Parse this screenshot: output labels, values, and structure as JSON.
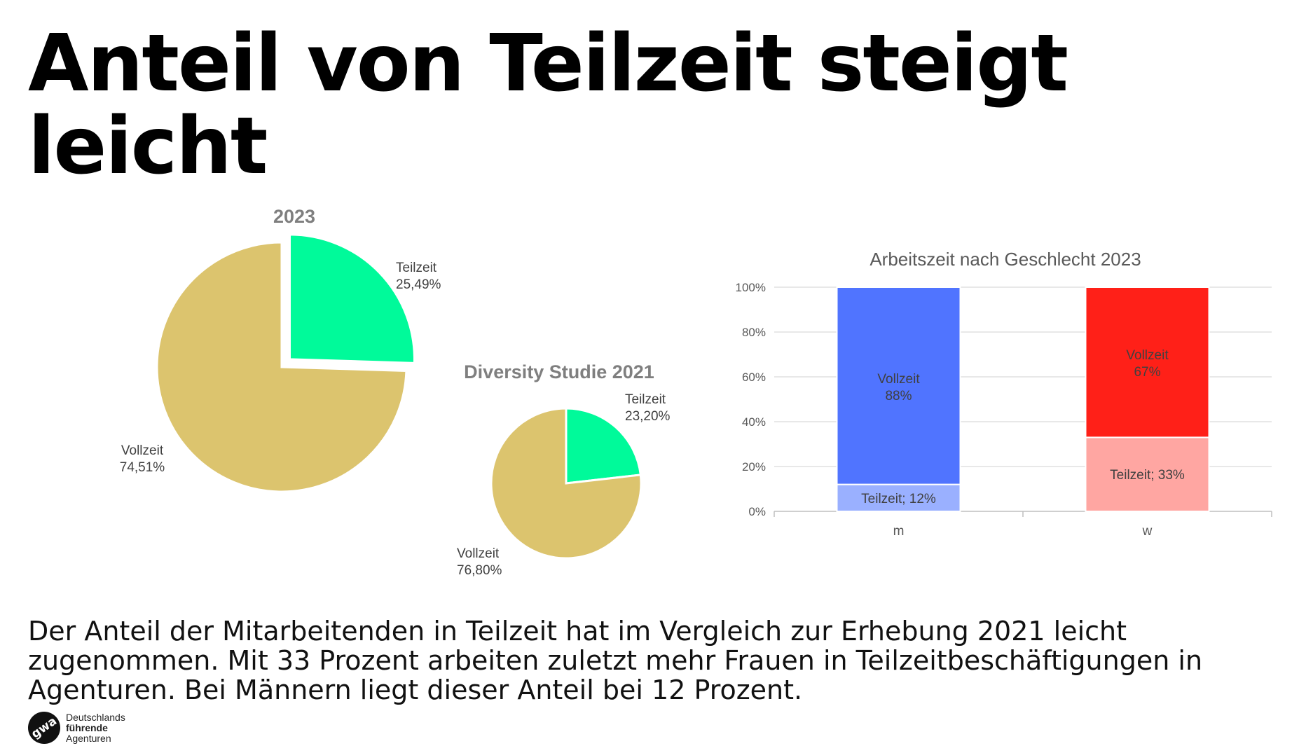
{
  "title": "Anteil von Teilzeit steigt leicht",
  "description": "Der Anteil der Mitarbeitenden in Teilzeit hat im Vergleich zur Erhebung 2021 leicht zugenommen. Mit 33 Prozent arbeiten zuletzt mehr Frauen in Teilzeitbeschäftigungen in Agenturen. Bei Männern liegt dieser Anteil bei 12 Prozent.",
  "logo": {
    "mark": "gwa",
    "line1": "Deutschlands",
    "line2": "führende",
    "line3": "Agenturen"
  },
  "colors": {
    "teilzeit_pie": "#00FA9A",
    "vollzeit_pie": "#DCC46E",
    "m_vollzeit": "#5074FF",
    "m_teilzeit": "#9AB0FF",
    "w_vollzeit": "#FF2018",
    "w_teilzeit": "#FFA6A2",
    "pie_title": "#7F7F7F",
    "bar_title": "#595959"
  },
  "chart_data": [
    {
      "type": "pie",
      "title": "2023",
      "slices": [
        {
          "label": "Teilzeit",
          "value": 25.49,
          "value_label": "25,49%",
          "exploded": true
        },
        {
          "label": "Vollzeit",
          "value": 74.51,
          "value_label": "74,51%"
        }
      ]
    },
    {
      "type": "pie",
      "title": "Diversity Studie 2021",
      "slices": [
        {
          "label": "Teilzeit",
          "value": 23.2,
          "value_label": "23,20%"
        },
        {
          "label": "Vollzeit",
          "value": 76.8,
          "value_label": "76,80%"
        }
      ]
    },
    {
      "type": "bar",
      "stacked": true,
      "percent_stacked": true,
      "title": "Arbeitszeit nach Geschlecht 2023",
      "categories": [
        "m",
        "w"
      ],
      "ylim": [
        0,
        100
      ],
      "yticks": [
        "0%",
        "20%",
        "40%",
        "60%",
        "80%",
        "100%"
      ],
      "grid": true,
      "bars": [
        {
          "category": "m",
          "segments": [
            {
              "name": "Teilzeit",
              "value": 12,
              "label": "Teilzeit; 12%"
            },
            {
              "name": "Vollzeit",
              "value": 88,
              "label_name": "Vollzeit",
              "label_value": "88%"
            }
          ]
        },
        {
          "category": "w",
          "segments": [
            {
              "name": "Teilzeit",
              "value": 33,
              "label": "Teilzeit; 33%"
            },
            {
              "name": "Vollzeit",
              "value": 67,
              "label_name": "Vollzeit",
              "label_value": "67%"
            }
          ]
        }
      ]
    }
  ]
}
